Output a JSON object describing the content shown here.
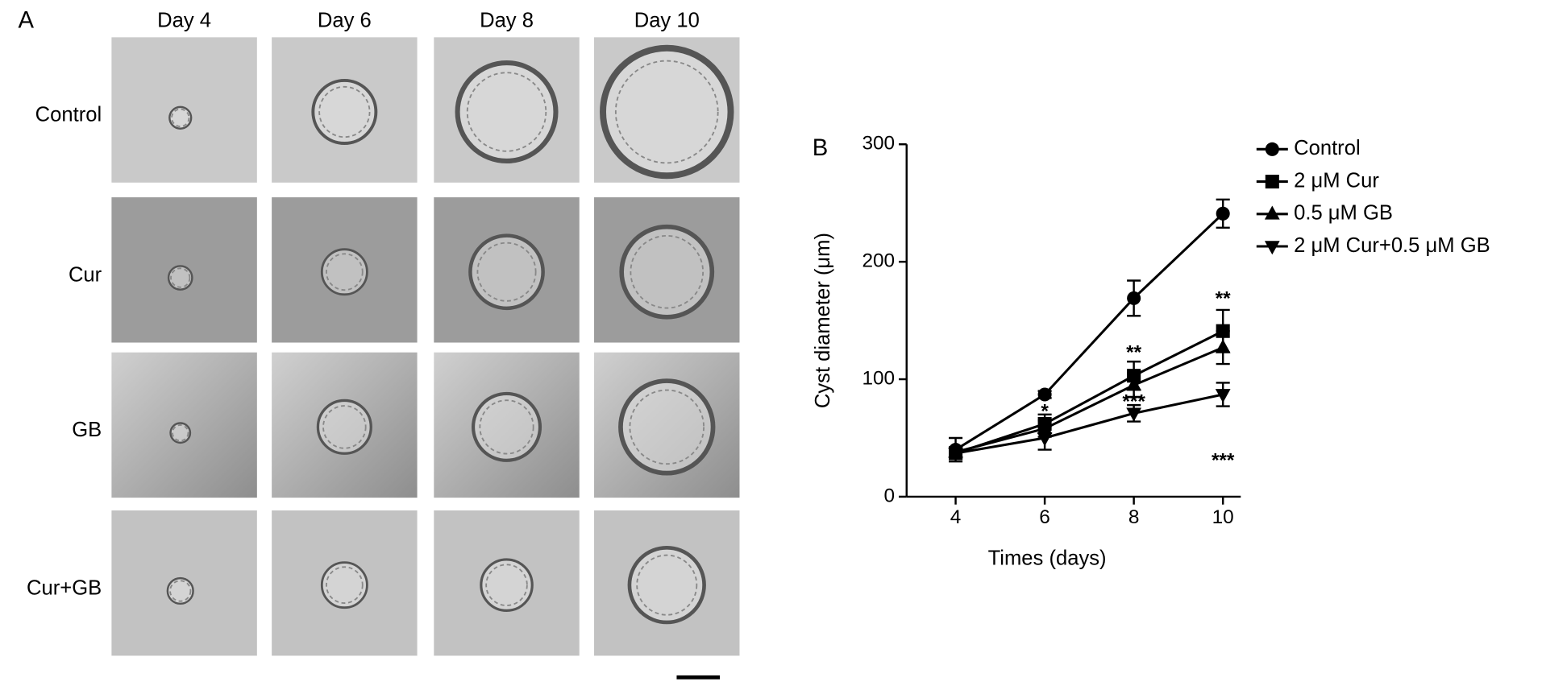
{
  "panel_a": {
    "label": "A",
    "columns": [
      "Day 4",
      "Day 6",
      "Day 8",
      "Day 10"
    ],
    "rows": [
      "Control",
      "Cur",
      "GB",
      "Cur+GB"
    ]
  },
  "chart_data": {
    "type": "line",
    "panel_label": "B",
    "x_label": "Times (days)",
    "y_label": "Cyst diameter (μm)",
    "x": [
      4,
      6,
      8,
      10
    ],
    "xlim": [
      2.9,
      10.4
    ],
    "xticks": [
      4,
      6,
      8,
      10
    ],
    "ylim": [
      0,
      300
    ],
    "yticks": [
      0,
      100,
      200,
      300
    ],
    "legend": "upper right",
    "series": [
      {
        "name": "Control",
        "color": "#000000",
        "marker": "circle",
        "values": [
          40,
          87,
          169,
          241
        ],
        "errors": [
          10,
          3,
          15,
          12
        ]
      },
      {
        "name": "2 μM Cur",
        "color": "#000000",
        "marker": "square",
        "values": [
          37,
          62,
          103,
          141
        ],
        "errors": [
          5,
          8,
          12,
          18
        ]
      },
      {
        "name": "0.5 μM GB",
        "color": "#000000",
        "marker": "triangle-up",
        "values": [
          38,
          58,
          95,
          127
        ],
        "errors": [
          4,
          7,
          10,
          14
        ]
      },
      {
        "name": "2 μM Cur+0.5 μM GB",
        "color": "#000000",
        "marker": "triangle-down",
        "values": [
          37,
          50,
          71,
          87
        ],
        "errors": [
          4,
          10,
          7,
          10
        ]
      }
    ],
    "annotations": [
      {
        "text": "*",
        "x": 6,
        "y": 72
      },
      {
        "text": "**",
        "x": 8,
        "y": 122
      },
      {
        "text": "***",
        "x": 8,
        "y": 80
      },
      {
        "text": "**",
        "x": 10,
        "y": 168
      },
      {
        "text": "***",
        "x": 10,
        "y": 30
      }
    ]
  }
}
